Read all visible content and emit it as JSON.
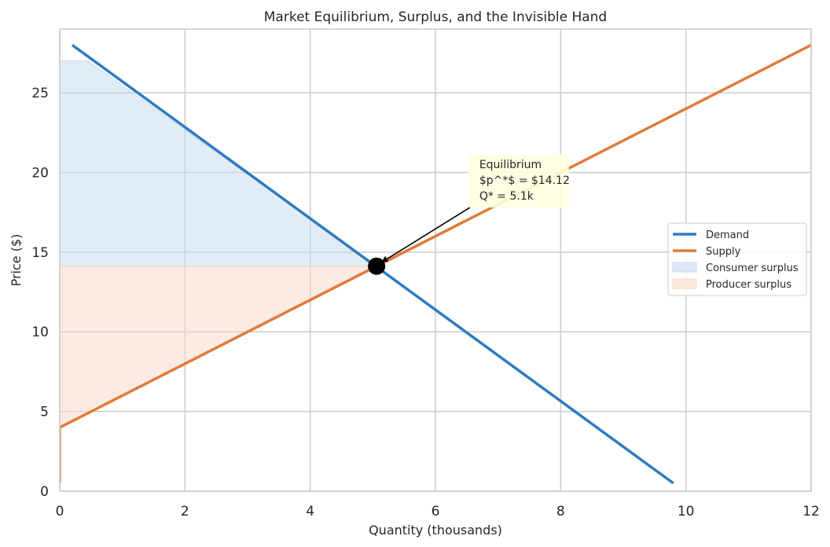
{
  "chart_data": {
    "type": "line",
    "title": "Market Equilibrium, Surplus, and the Invisible Hand",
    "xlabel": "Quantity (thousands)",
    "ylabel": "Price ($)",
    "xlim": [
      0,
      12
    ],
    "ylim": [
      0,
      29
    ],
    "xticks": [
      0,
      2,
      4,
      6,
      8,
      10,
      12
    ],
    "yticks": [
      0,
      5,
      10,
      15,
      20,
      25
    ],
    "grid": true,
    "legend_position": "center-right",
    "series": [
      {
        "name": "Demand",
        "type": "line",
        "color": "#2f7bbf",
        "x": [
          0.2,
          9.8
        ],
        "y": [
          28.0,
          0.5
        ]
      },
      {
        "name": "Supply",
        "type": "line",
        "color": "#e07b39",
        "x": [
          0,
          12
        ],
        "y": [
          4.0,
          28.0
        ]
      }
    ],
    "areas": [
      {
        "name": "Consumer surplus",
        "color": "#c6d9ee",
        "x": [
          0,
          0.45,
          5.06
        ],
        "upper": [
          27.0,
          27.0,
          14.12
        ],
        "lower": 14.12
      },
      {
        "name": "Producer surplus",
        "color": "#f8d8c8",
        "x": [
          0,
          5.06
        ],
        "upper": [
          14.12,
          14.12
        ],
        "lower_x": [
          0,
          5.06
        ],
        "lower": [
          4.0,
          14.12
        ]
      }
    ],
    "equilibrium": {
      "x": 5.06,
      "y": 14.12
    },
    "annotation": {
      "lines": [
        "Equilibrium",
        "$p^*$ = $14.12",
        "Q* = 5.1k"
      ],
      "text_at": {
        "x": 6.55,
        "y": 17.8
      }
    }
  }
}
